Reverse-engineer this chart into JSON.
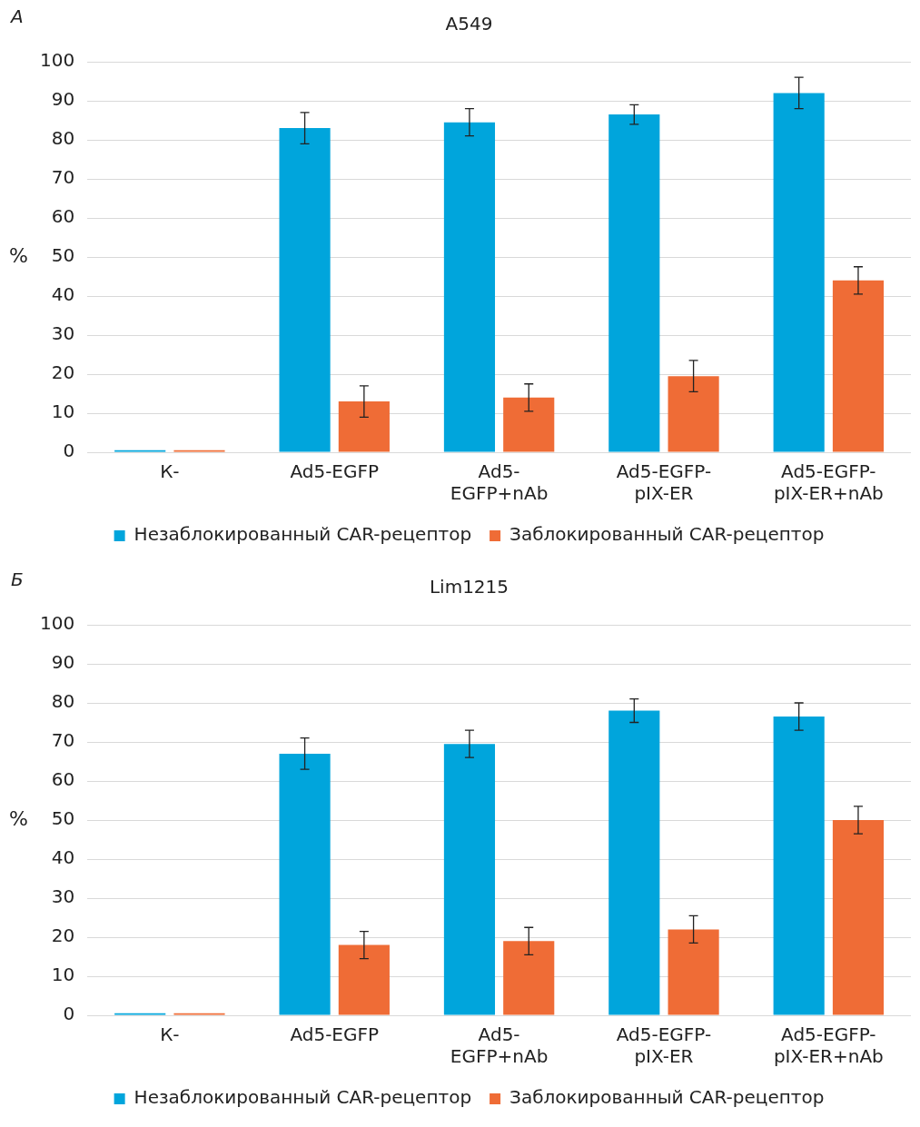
{
  "chart_data": [
    {
      "type": "bar",
      "title": "A549",
      "ylabel": "%",
      "annotations": [
        "А"
      ],
      "categories": [
        "К-",
        "Ad5-EGFP",
        "Ad5-EGFP+nAb",
        "Ad5-EGFP-pIX-ER",
        "Ad5-EGFP-pIX-ER+nAb"
      ],
      "series": [
        {
          "name": "Незаблокированный CAR-рецептор",
          "color": "#00a5dc",
          "values": [
            0.5,
            83,
            84.5,
            86.5,
            92
          ],
          "errors": [
            null,
            4,
            3.5,
            2.5,
            4
          ]
        },
        {
          "name": "Заблокированный CAR-рецептор",
          "color": "#ef6c36",
          "values": [
            0.5,
            13,
            14,
            19.5,
            44
          ],
          "errors": [
            null,
            4,
            3.5,
            4,
            3.5
          ]
        }
      ],
      "ylim": [
        0,
        100
      ],
      "yticks": [
        0,
        10,
        20,
        30,
        40,
        50,
        60,
        70,
        80,
        90,
        100
      ],
      "grid": "y",
      "legend": "bottom"
    },
    {
      "type": "bar",
      "title": "Lim1215",
      "ylabel": "%",
      "annotations": [
        "Б"
      ],
      "categories": [
        "К-",
        "Ad5-EGFP",
        "Ad5-EGFP+nAb",
        "Ad5-EGFP-pIX-ER",
        "Ad5-EGFP-pIX-ER+nAb"
      ],
      "series": [
        {
          "name": "Незаблокированный CAR-рецептор",
          "color": "#00a5dc",
          "values": [
            0.5,
            67,
            69.5,
            78,
            76.5
          ],
          "errors": [
            null,
            4,
            3.5,
            3,
            3.5
          ]
        },
        {
          "name": "Заблокированный CAR-рецептор",
          "color": "#ef6c36",
          "values": [
            0.5,
            18,
            19,
            22,
            50
          ],
          "errors": [
            null,
            3.5,
            3.5,
            3.5,
            3.5
          ]
        }
      ],
      "ylim": [
        0,
        100
      ],
      "yticks": [
        0,
        10,
        20,
        30,
        40,
        50,
        60,
        70,
        80,
        90,
        100
      ],
      "grid": "y",
      "legend": "bottom"
    }
  ]
}
